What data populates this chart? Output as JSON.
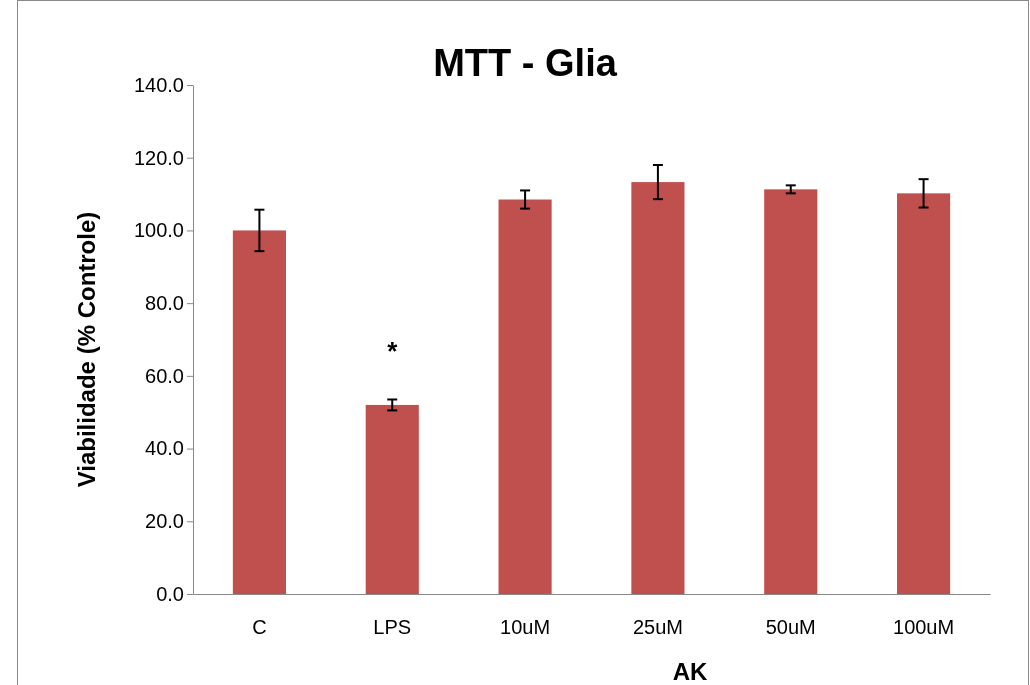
{
  "chart_data": {
    "type": "bar",
    "title": "MTT - Glia",
    "xlabel": "AK",
    "ylabel": "Viabilidade (% Controle)",
    "categories": [
      "C",
      "LPS",
      "10uM",
      "25uM",
      "50uM",
      "100uM"
    ],
    "values": [
      100,
      52.0,
      108.5,
      113.3,
      111.3,
      110.2
    ],
    "errors": [
      5.7,
      1.5,
      2.5,
      4.7,
      1.1,
      3.9
    ],
    "color": "#c0504d",
    "ylim": [
      0,
      140
    ],
    "yticks": [
      {
        "value": 0,
        "label": "0.0"
      },
      {
        "value": 20,
        "label": "20.0"
      },
      {
        "value": 40,
        "label": "40.0"
      },
      {
        "value": 60,
        "label": "60.0"
      },
      {
        "value": 80,
        "label": "80.0"
      },
      {
        "value": 100,
        "label": "100.0"
      },
      {
        "value": 120,
        "label": "120.0"
      },
      {
        "value": 140,
        "label": "140.0"
      }
    ],
    "annotations": [
      "*"
    ]
  }
}
